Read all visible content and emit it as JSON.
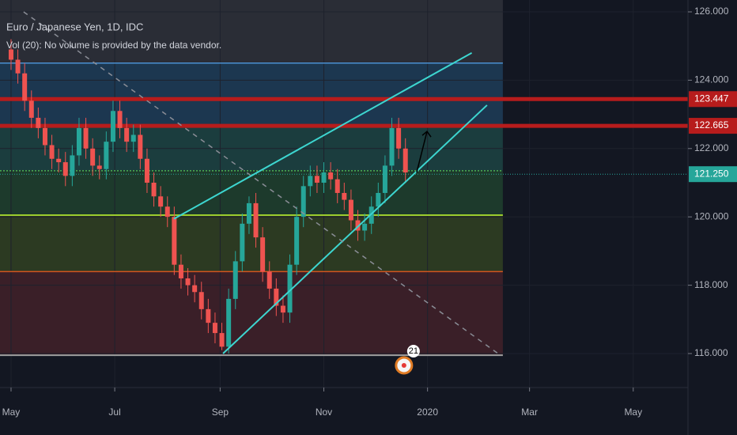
{
  "chart_data": {
    "type": "candlestick",
    "title": "Euro / Japanese Yen, 1D, IDC",
    "subtitle": "Vol (20): No volume is provided by the data vendor.",
    "up_color": "#26a69a",
    "down_color": "#ef5350",
    "xlim": [
      -6.5,
      398.2
    ],
    "ylim": [
      115.005,
      126.347
    ],
    "xticks": [
      {
        "value": 0,
        "label": "May"
      },
      {
        "value": 61,
        "label": "Jul"
      },
      {
        "value": 123,
        "label": "Sep"
      },
      {
        "value": 184,
        "label": "Nov"
      },
      {
        "value": 245,
        "label": "2020"
      },
      {
        "value": 305,
        "label": "Mar"
      },
      {
        "value": 366,
        "label": "May"
      }
    ],
    "yticks": [
      {
        "value": 116,
        "label": "116.000"
      },
      {
        "value": 118,
        "label": "118.000"
      },
      {
        "value": 120,
        "label": "120.000"
      },
      {
        "value": 122,
        "label": "122.000"
      },
      {
        "value": 124,
        "label": "124.000"
      },
      {
        "value": 126,
        "label": "126.000"
      }
    ],
    "x": [
      0,
      4,
      8,
      12,
      16,
      20,
      24,
      28,
      32,
      36,
      40,
      44,
      48,
      52,
      56,
      60,
      64,
      68,
      72,
      76,
      80,
      84,
      88,
      92,
      96,
      100,
      104,
      108,
      112,
      116,
      120,
      124,
      128,
      132,
      136,
      140,
      144,
      148,
      152,
      156,
      160,
      164,
      168,
      172,
      176,
      180,
      184,
      188,
      192,
      196,
      200,
      204,
      208,
      212,
      216,
      220,
      224,
      228,
      232
    ],
    "open": [
      124.9,
      124.6,
      124.2,
      123.4,
      122.9,
      122.6,
      122.1,
      121.7,
      121.6,
      121.2,
      121.8,
      122.6,
      122.0,
      121.5,
      121.4,
      122.2,
      123.1,
      122.6,
      122.2,
      122.4,
      121.7,
      121.0,
      120.6,
      120.3,
      120.0,
      118.6,
      118.2,
      118.0,
      117.8,
      117.3,
      116.9,
      116.6,
      116.2,
      117.6,
      118.7,
      119.8,
      120.4,
      119.4,
      118.4,
      117.9,
      117.4,
      117.2,
      118.6,
      120.0,
      120.9,
      121.2,
      121.0,
      121.3,
      121.1,
      120.7,
      120.5,
      119.9,
      119.6,
      119.8,
      120.3,
      120.7,
      121.5,
      122.6,
      122.0
    ],
    "high": [
      125.2,
      124.9,
      124.5,
      123.7,
      123.2,
      122.9,
      122.4,
      122.0,
      121.9,
      122.1,
      122.9,
      122.9,
      122.3,
      121.8,
      122.5,
      123.4,
      123.4,
      122.9,
      122.7,
      122.7,
      122.0,
      121.3,
      120.9,
      120.6,
      120.3,
      118.9,
      118.5,
      118.3,
      118.1,
      117.6,
      117.2,
      116.9,
      117.9,
      119.0,
      120.1,
      120.6,
      120.7,
      119.7,
      118.7,
      118.2,
      117.7,
      118.9,
      120.3,
      121.2,
      121.5,
      121.5,
      121.6,
      121.6,
      121.4,
      121.0,
      120.8,
      120.2,
      120.1,
      120.6,
      121.0,
      121.8,
      122.9,
      122.9,
      122.3
    ],
    "low": [
      124.3,
      123.9,
      123.1,
      122.6,
      122.3,
      121.8,
      121.4,
      121.3,
      120.9,
      120.9,
      121.5,
      121.7,
      121.2,
      121.1,
      121.1,
      121.9,
      122.3,
      121.9,
      121.9,
      121.4,
      120.7,
      120.3,
      120.0,
      119.7,
      118.3,
      117.9,
      117.7,
      117.5,
      117.0,
      116.6,
      116.3,
      116.1,
      116.0,
      117.3,
      118.4,
      119.5,
      119.1,
      118.1,
      117.6,
      117.1,
      116.9,
      116.9,
      118.3,
      119.7,
      120.6,
      120.7,
      120.7,
      120.8,
      120.4,
      120.2,
      119.6,
      119.3,
      119.3,
      119.5,
      120.0,
      120.4,
      121.2,
      121.7,
      121.0
    ],
    "close": [
      124.6,
      124.2,
      123.4,
      122.9,
      122.6,
      122.1,
      121.7,
      121.6,
      121.2,
      121.8,
      122.6,
      122.0,
      121.5,
      121.4,
      122.2,
      123.1,
      122.6,
      122.2,
      122.4,
      121.7,
      121.0,
      120.6,
      120.3,
      120.0,
      118.6,
      118.2,
      118.0,
      117.8,
      117.3,
      116.9,
      116.6,
      116.2,
      117.6,
      118.7,
      119.8,
      120.4,
      119.4,
      118.4,
      117.9,
      117.4,
      117.2,
      118.6,
      120.0,
      120.9,
      121.2,
      121.0,
      121.3,
      121.1,
      120.7,
      120.5,
      119.9,
      119.6,
      119.8,
      120.3,
      120.7,
      121.5,
      122.6,
      122.0,
      121.3
    ],
    "zone_end": 289.3,
    "zones": [
      {
        "from": 124.5,
        "to": 126.347,
        "color": "#2a2d36"
      },
      {
        "from": 122.665,
        "to": 124.5,
        "color": "#1c3750"
      },
      {
        "from": 121.35,
        "to": 122.665,
        "color": "#1b3d3e"
      },
      {
        "from": 120.05,
        "to": 121.35,
        "color": "#1d3a2c"
      },
      {
        "from": 118.4,
        "to": 120.05,
        "color": "#2c3a22"
      },
      {
        "from": 115.95,
        "to": 118.4,
        "color": "#3a1f28"
      }
    ],
    "levels": [
      {
        "value": 124.5,
        "color": "#4a8fcf",
        "width": 1.5
      },
      {
        "value": 123.447,
        "color": "#b71c1c",
        "width": 5
      },
      {
        "value": 122.665,
        "color": "#b71c1c",
        "width": 5
      },
      {
        "value": 121.35,
        "color": "#4caf50",
        "width": 1.5
      },
      {
        "value": 120.05,
        "color": "#9ccc2e",
        "width": 2
      },
      {
        "value": 118.4,
        "color": "#d2541f",
        "width": 1.5
      },
      {
        "value": 115.95,
        "color": "#9e9e9e",
        "width": 2
      }
    ],
    "trend_lines": [
      {
        "x": [
          95.8,
          271
        ],
        "y": [
          119.94,
          124.8
        ],
        "color": "#3dd6d0",
        "dash": false
      },
      {
        "x": [
          124.7,
          280
        ],
        "y": [
          116.0,
          123.27
        ],
        "color": "#3dd6d0",
        "dash": false
      },
      {
        "x": [
          7.4,
          286.5
        ],
        "y": [
          126.0,
          116.0
        ],
        "color": "#8a8d96",
        "dash": true
      }
    ],
    "arrow": {
      "x": [
        238.6,
        244.7
      ],
      "y": [
        121.3,
        122.5
      ]
    },
    "price_labels": [
      {
        "value": 123.447,
        "label": "123.447",
        "color": "#b71c1c"
      },
      {
        "value": 122.665,
        "label": "122.665",
        "color": "#b71c1c"
      },
      {
        "value": 121.25,
        "label": "121.250",
        "color": "#26a69a"
      }
    ],
    "event_badge": {
      "x": 233,
      "label": "21"
    }
  }
}
